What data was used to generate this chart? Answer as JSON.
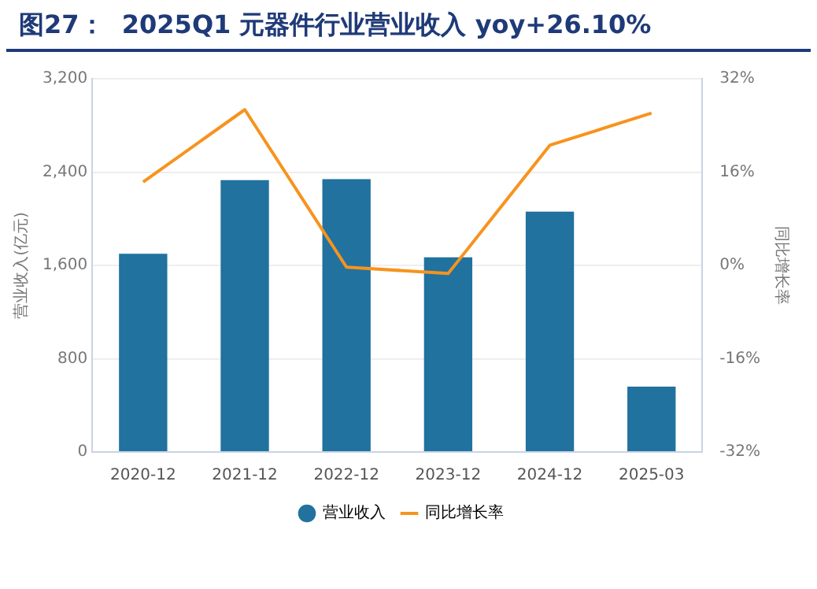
{
  "chart_data": {
    "type": "bar",
    "title": "图27：  2025Q1 元器件行业营业收入 yoy+26.10%",
    "ylabel": "营业收入(亿元)",
    "y2label": "同比增长率",
    "categories": [
      "2020-12",
      "2021-12",
      "2022-12",
      "2023-12",
      "2024-12",
      "2025-03"
    ],
    "series": [
      {
        "name": "营业收入",
        "color": "#21729e",
        "values": [
          1700,
          2330,
          2340,
          1670,
          2060,
          560
        ]
      },
      {
        "name": "同比增长率",
        "type": "line",
        "axis": "y2",
        "color": "#f7931e",
        "values": [
          14.3,
          26.7,
          -0.3,
          -1.4,
          20.6,
          26.1
        ]
      }
    ],
    "ylim": [
      0,
      3200
    ],
    "yticks": [
      0,
      800,
      {
        "value": 1600,
        "label": "1,600"
      },
      {
        "value": 2400,
        "label": "2,400"
      },
      {
        "value": 3200,
        "label": "3,200"
      }
    ],
    "y2lim": [
      -32,
      32
    ],
    "y2ticks": [
      {
        "value": -32,
        "label": "-32%"
      },
      {
        "value": -16,
        "label": "-16%"
      },
      {
        "value": 0,
        "label": "0%"
      },
      {
        "value": 16,
        "label": "16%"
      },
      {
        "value": 32,
        "label": "32%"
      }
    ],
    "grid": "y",
    "legend": "bottom",
    "marker": "none"
  }
}
